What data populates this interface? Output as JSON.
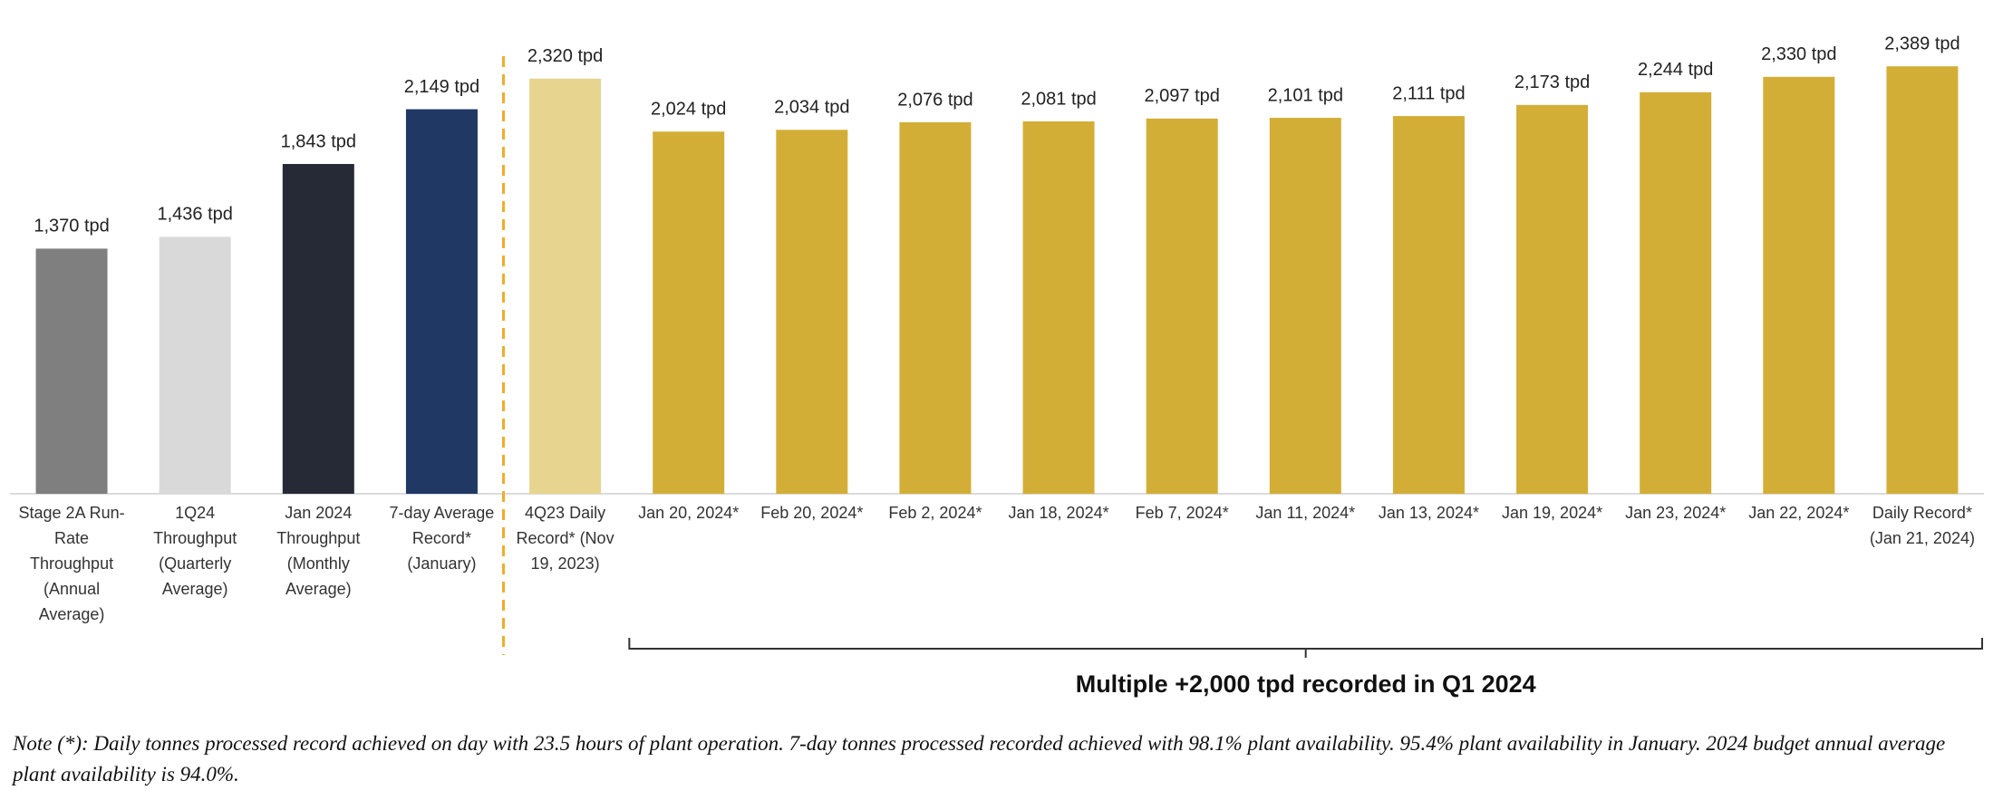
{
  "chart_data": {
    "type": "bar",
    "categories": [
      "Stage 2A Run-Rate Throughput (Annual Average)",
      "1Q24 Throughput (Quarterly Average)",
      "Jan 2024 Throughput (Monthly Average)",
      "7-day Average Record* (January)",
      "4Q23 Daily Record* (Nov 19, 2023)",
      "Jan 20, 2024*",
      "Feb 20, 2024*",
      "Feb 2, 2024*",
      "Jan 18, 2024*",
      "Feb 7, 2024*",
      "Jan 11, 2024*",
      "Jan 13, 2024*",
      "Jan 19, 2024*",
      "Jan 23, 2024*",
      "Jan 22, 2024*",
      "Daily Record* (Jan 21, 2024)"
    ],
    "values": [
      1370,
      1436,
      1843,
      2149,
      2320,
      2024,
      2034,
      2076,
      2081,
      2097,
      2101,
      2111,
      2173,
      2244,
      2330,
      2389
    ],
    "value_labels": [
      "1,370 tpd",
      "1,436 tpd",
      "1,843 tpd",
      "2,149 tpd",
      "2,320 tpd",
      "2,024 tpd",
      "2,034 tpd",
      "2,076 tpd",
      "2,081 tpd",
      "2,097 tpd",
      "2,101 tpd",
      "2,111 tpd",
      "2,173 tpd",
      "2,244 tpd",
      "2,330 tpd",
      "2,389 tpd"
    ],
    "colors": [
      "#7f7f7f",
      "#d9d9d9",
      "#262a36",
      "#1f3864",
      "#e6d48f",
      "#d3ae37",
      "#d3ae37",
      "#d3ae37",
      "#d3ae37",
      "#d3ae37",
      "#d3ae37",
      "#d3ae37",
      "#d3ae37",
      "#d3ae37",
      "#d3ae37",
      "#d3ae37"
    ],
    "ylim": [
      0,
      2400
    ],
    "annotation": "Multiple +2,000 tpd recorded in Q1 2024",
    "note": "Note (*): Daily tonnes processed record achieved on day with 23.5 hours of plant operation. 7-day tonnes processed recorded achieved with 98.1% plant availability. 95.4% plant availability in January. 2024 budget annual average plant availability is 94.0%."
  }
}
